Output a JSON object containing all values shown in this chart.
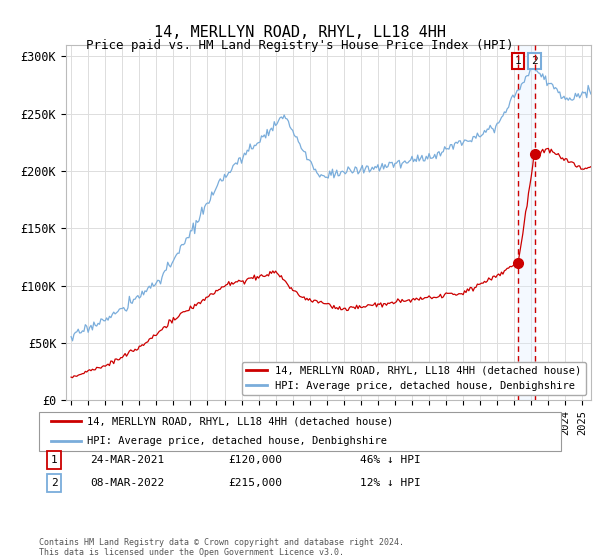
{
  "title": "14, MERLLYN ROAD, RHYL, LL18 4HH",
  "subtitle": "Price paid vs. HM Land Registry's House Price Index (HPI)",
  "hpi_color": "#7aaddb",
  "price_color": "#cc0000",
  "dashed_color": "#cc0000",
  "shade_color": "#ddeeff",
  "ylim": [
    0,
    310000
  ],
  "yticks": [
    0,
    50000,
    100000,
    150000,
    200000,
    250000,
    300000
  ],
  "ytick_labels": [
    "£0",
    "£50K",
    "£100K",
    "£150K",
    "£200K",
    "£250K",
    "£300K"
  ],
  "legend_line1": "14, MERLLYN ROAD, RHYL, LL18 4HH (detached house)",
  "legend_line2": "HPI: Average price, detached house, Denbighshire",
  "sale1_date": "24-MAR-2021",
  "sale1_price": "£120,000",
  "sale1_hpi": "46% ↓ HPI",
  "sale1_year": 2021.23,
  "sale1_value": 120000,
  "sale2_date": "08-MAR-2022",
  "sale2_price": "£215,000",
  "sale2_hpi": "12% ↓ HPI",
  "sale2_year": 2022.19,
  "sale2_value": 215000,
  "footnote": "Contains HM Land Registry data © Crown copyright and database right 2024.\nThis data is licensed under the Open Government Licence v3.0.",
  "background_color": "#ffffff",
  "grid_color": "#dddddd"
}
